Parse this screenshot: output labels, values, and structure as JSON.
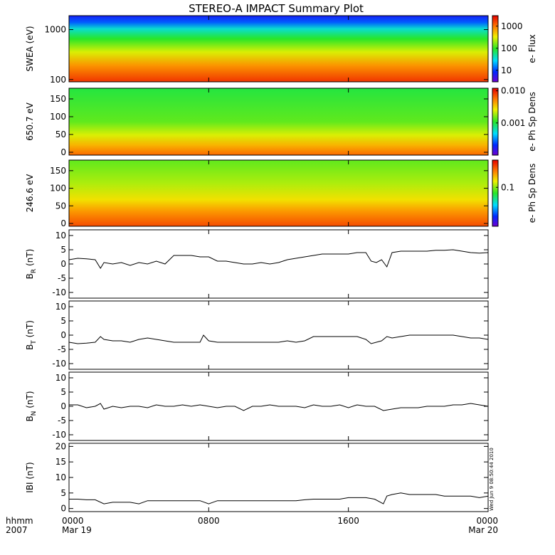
{
  "chart_data": {
    "title": "STEREO-A IMPACT Summary Plot",
    "stamp": "Wed Jun  9 08:50:44 2010",
    "x_axis": {
      "row1_label": "hhmm",
      "row2_label": "2007",
      "ticks": [
        {
          "hour": 0,
          "hhmm": "0000",
          "date": "Mar 19"
        },
        {
          "hour": 8,
          "hhmm": "0800",
          "date": ""
        },
        {
          "hour": 16,
          "hhmm": "1600",
          "date": ""
        },
        {
          "hour": 24,
          "hhmm": "0000",
          "date": "Mar 20"
        }
      ],
      "range_hours": [
        0,
        24
      ]
    },
    "spectrograms": [
      {
        "type": "heatmap",
        "ylabel": "SWEA (eV)",
        "yscale": "log",
        "ylim": [
          90,
          1900
        ],
        "yticks": [
          {
            "v": 100,
            "label": "100"
          },
          {
            "v": 1000,
            "label": "1000"
          }
        ],
        "colorbar": {
          "label": "e- Flux",
          "scale": "log",
          "range": [
            3,
            3000
          ],
          "ticks": [
            {
              "v": 10,
              "label": "10"
            },
            {
              "v": 100,
              "label": "100"
            },
            {
              "v": 1000,
              "label": "1000"
            }
          ]
        }
      },
      {
        "type": "heatmap",
        "ylabel": "650.7 eV",
        "ylim": [
          -8,
          180
        ],
        "yticks": [
          {
            "v": 0,
            "label": "0"
          },
          {
            "v": 50,
            "label": "50"
          },
          {
            "v": 100,
            "label": "100"
          },
          {
            "v": 150,
            "label": "150"
          }
        ],
        "colorbar": {
          "label": "e- Ph Sp Dens",
          "scale": "log",
          "range": [
            0.0001,
            0.012
          ],
          "ticks": [
            {
              "v": 0.001,
              "label": "0.001"
            },
            {
              "v": 0.01,
              "label": "0.010"
            }
          ]
        }
      },
      {
        "type": "heatmap",
        "ylabel": "246.6 eV",
        "ylim": [
          -8,
          180
        ],
        "yticks": [
          {
            "v": 0,
            "label": "0"
          },
          {
            "v": 50,
            "label": "50"
          },
          {
            "v": 100,
            "label": "100"
          },
          {
            "v": 150,
            "label": "150"
          }
        ],
        "colorbar": {
          "label": "e- Ph Sp Dens",
          "scale": "log",
          "range": [
            0.01,
            0.5
          ],
          "ticks": [
            {
              "v": 0.1,
              "label": "0.1"
            }
          ]
        }
      }
    ],
    "line_panels": [
      {
        "type": "line",
        "ylabel_main": "B",
        "ylabel_sub": "R",
        "ylabel_unit": " (nT)",
        "ylim": [
          -12,
          12
        ],
        "yticks": [
          {
            "v": -10,
            "label": "-10"
          },
          {
            "v": -5,
            "label": "-5"
          },
          {
            "v": 0,
            "label": "0"
          },
          {
            "v": 5,
            "label": "5"
          },
          {
            "v": 10,
            "label": "10"
          }
        ],
        "x": [
          0,
          0.5,
          1,
          1.5,
          1.8,
          2,
          2.5,
          3,
          3.5,
          4,
          4.5,
          5,
          5.5,
          6,
          6.5,
          7,
          7.5,
          8,
          8.5,
          9,
          9.5,
          10,
          10.5,
          11,
          11.5,
          12,
          12.5,
          13,
          13.5,
          14,
          14.5,
          15,
          15.5,
          16,
          16.5,
          17,
          17.3,
          17.6,
          17.9,
          18.2,
          18.5,
          19,
          19.5,
          20,
          20.5,
          21,
          21.5,
          22,
          22.5,
          23,
          23.5,
          24
        ],
        "y": [
          1.5,
          2.0,
          1.8,
          1.5,
          -1.5,
          0.5,
          0.0,
          0.5,
          -0.5,
          0.5,
          0.0,
          1.0,
          0.0,
          3.0,
          3.0,
          3.0,
          2.5,
          2.5,
          1.0,
          1.0,
          0.5,
          0.0,
          0.0,
          0.5,
          0.0,
          0.5,
          1.5,
          2.0,
          2.5,
          3.0,
          3.5,
          3.5,
          3.5,
          3.5,
          4.0,
          4.0,
          1.0,
          0.5,
          1.5,
          -1.0,
          4.0,
          4.5,
          4.5,
          4.5,
          4.5,
          4.8,
          4.8,
          5.0,
          4.5,
          4.0,
          3.8,
          4.0
        ]
      },
      {
        "type": "line",
        "ylabel_main": "B",
        "ylabel_sub": "T",
        "ylabel_unit": " (nT)",
        "ylim": [
          -12,
          12
        ],
        "yticks": [
          {
            "v": -10,
            "label": "-10"
          },
          {
            "v": -5,
            "label": "-5"
          },
          {
            "v": 0,
            "label": "0"
          },
          {
            "v": 5,
            "label": "5"
          },
          {
            "v": 10,
            "label": "10"
          }
        ],
        "x": [
          0,
          0.5,
          1,
          1.5,
          1.8,
          2,
          2.5,
          3,
          3.5,
          4,
          4.5,
          5,
          5.5,
          6,
          6.5,
          7,
          7.5,
          7.7,
          8,
          8.5,
          9,
          9.5,
          10,
          10.5,
          11,
          11.5,
          12,
          12.5,
          13,
          13.5,
          14,
          14.5,
          15,
          15.5,
          16,
          16.5,
          17,
          17.3,
          17.6,
          17.9,
          18.2,
          18.5,
          19,
          19.5,
          20,
          20.5,
          21,
          21.5,
          22,
          22.5,
          23,
          23.5,
          24
        ],
        "y": [
          -2.5,
          -3.0,
          -2.8,
          -2.5,
          -0.5,
          -1.5,
          -2.0,
          -2.0,
          -2.5,
          -1.5,
          -1.0,
          -1.5,
          -2.0,
          -2.5,
          -2.5,
          -2.5,
          -2.5,
          0.0,
          -2.0,
          -2.5,
          -2.5,
          -2.5,
          -2.5,
          -2.5,
          -2.5,
          -2.5,
          -2.5,
          -2.0,
          -2.5,
          -2.0,
          -0.5,
          -0.5,
          -0.5,
          -0.5,
          -0.5,
          -0.5,
          -1.5,
          -3.0,
          -2.5,
          -2.0,
          -0.5,
          -1.0,
          -0.5,
          0.0,
          0.0,
          0.0,
          0.0,
          0.0,
          0.0,
          -0.5,
          -1.0,
          -1.0,
          -1.5
        ]
      },
      {
        "type": "line",
        "ylabel_main": "B",
        "ylabel_sub": "N",
        "ylabel_unit": " (nT)",
        "ylim": [
          -12,
          12
        ],
        "yticks": [
          {
            "v": -10,
            "label": "-10"
          },
          {
            "v": -5,
            "label": "-5"
          },
          {
            "v": 0,
            "label": "0"
          },
          {
            "v": 5,
            "label": "5"
          },
          {
            "v": 10,
            "label": "10"
          }
        ],
        "x": [
          0,
          0.5,
          1,
          1.5,
          1.8,
          2,
          2.5,
          3,
          3.5,
          4,
          4.5,
          5,
          5.5,
          6,
          6.5,
          7,
          7.5,
          8,
          8.5,
          9,
          9.5,
          10,
          10.5,
          11,
          11.5,
          12,
          12.5,
          13,
          13.5,
          14,
          14.5,
          15,
          15.5,
          16,
          16.5,
          17,
          17.5,
          18,
          18.5,
          19,
          19.5,
          20,
          20.5,
          21,
          21.5,
          22,
          22.5,
          23,
          23.5,
          24
        ],
        "y": [
          0.5,
          0.5,
          -0.5,
          0.0,
          1.0,
          -1.0,
          0.0,
          -0.5,
          0.0,
          0.0,
          -0.5,
          0.5,
          0.0,
          0.0,
          0.5,
          0.0,
          0.5,
          0.0,
          -0.5,
          0.0,
          0.0,
          -1.5,
          0.0,
          0.0,
          0.5,
          0.0,
          0.0,
          0.0,
          -0.5,
          0.5,
          0.0,
          0.0,
          0.5,
          -0.5,
          0.5,
          0.0,
          0.0,
          -1.5,
          -1.0,
          -0.5,
          -0.5,
          -0.5,
          0.0,
          0.0,
          0.0,
          0.5,
          0.5,
          1.0,
          0.5,
          0.0
        ]
      },
      {
        "type": "line",
        "ylabel_main": "IBI",
        "ylabel_sub": "",
        "ylabel_unit": " (nT)",
        "ylim": [
          -1,
          21
        ],
        "yticks": [
          {
            "v": 0,
            "label": "0"
          },
          {
            "v": 5,
            "label": "5"
          },
          {
            "v": 10,
            "label": "10"
          },
          {
            "v": 15,
            "label": "15"
          },
          {
            "v": 20,
            "label": "20"
          }
        ],
        "x": [
          0,
          0.5,
          1,
          1.5,
          2,
          2.5,
          3,
          3.5,
          4,
          4.5,
          5,
          5.5,
          6,
          6.5,
          7,
          7.5,
          8,
          8.5,
          9,
          9.5,
          10,
          10.5,
          11,
          11.5,
          12,
          12.5,
          13,
          13.5,
          14,
          14.5,
          15,
          15.5,
          16,
          16.5,
          17,
          17.5,
          18,
          18.2,
          18.5,
          19,
          19.5,
          20,
          20.5,
          21,
          21.5,
          22,
          22.5,
          23,
          23.5,
          24
        ],
        "y": [
          3.0,
          3.0,
          2.8,
          2.8,
          1.5,
          2.0,
          2.0,
          2.0,
          1.5,
          2.5,
          2.5,
          2.5,
          2.5,
          2.5,
          2.5,
          2.5,
          1.5,
          2.5,
          2.5,
          2.5,
          2.5,
          2.5,
          2.5,
          2.5,
          2.5,
          2.5,
          2.5,
          2.8,
          3.0,
          3.0,
          3.0,
          3.0,
          3.5,
          3.5,
          3.5,
          3.0,
          1.5,
          4.0,
          4.5,
          5.0,
          4.5,
          4.5,
          4.5,
          4.5,
          4.0,
          4.0,
          4.0,
          4.0,
          3.5,
          4.0
        ]
      }
    ]
  }
}
